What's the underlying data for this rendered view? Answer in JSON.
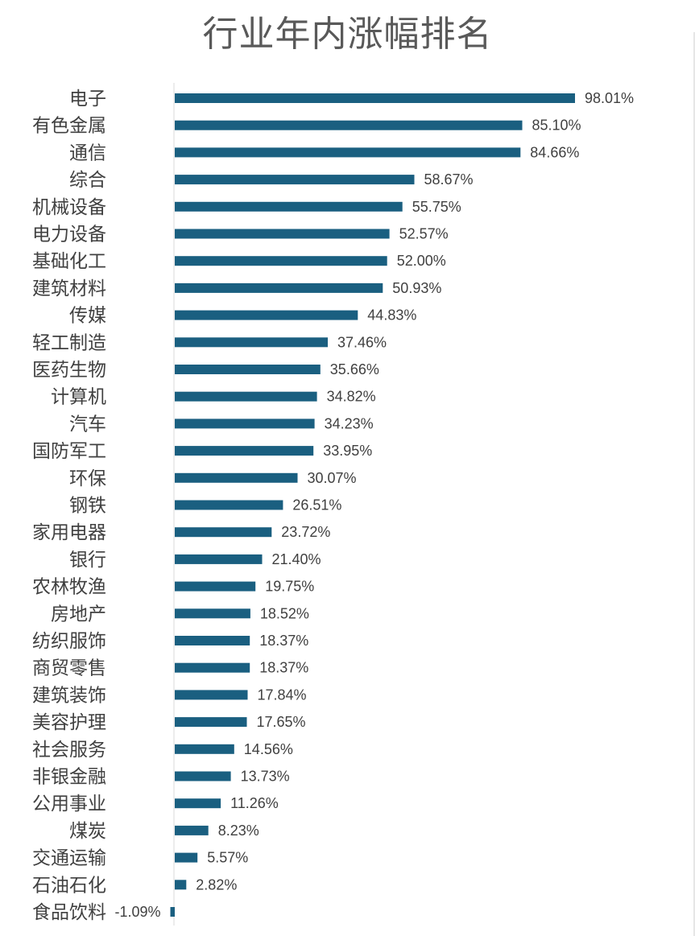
{
  "chart_data": {
    "type": "bar",
    "orientation": "horizontal",
    "title": "行业年内涨幅排名",
    "categories": [
      "电子",
      "有色金属",
      "通信",
      "综合",
      "机械设备",
      "电力设备",
      "基础化工",
      "建筑材料",
      "传媒",
      "轻工制造",
      "医药生物",
      "计算机",
      "汽车",
      "国防军工",
      "环保",
      "钢铁",
      "家用电器",
      "银行",
      "农林牧渔",
      "房地产",
      "纺织服饰",
      "商贸零售",
      "建筑装饰",
      "美容护理",
      "社会服务",
      "非银金融",
      "公用事业",
      "煤炭",
      "交通运输",
      "石油石化",
      "食品饮料"
    ],
    "values": [
      98.01,
      85.1,
      84.66,
      58.67,
      55.75,
      52.57,
      52.0,
      50.93,
      44.83,
      37.46,
      35.66,
      34.82,
      34.23,
      33.95,
      30.07,
      26.51,
      23.72,
      21.4,
      19.75,
      18.52,
      18.37,
      18.37,
      17.84,
      17.65,
      14.56,
      13.73,
      11.26,
      8.23,
      5.57,
      2.82,
      -1.09
    ],
    "value_labels": [
      "98.01%",
      "85.10%",
      "84.66%",
      "58.67%",
      "55.75%",
      "52.57%",
      "52.00%",
      "50.93%",
      "44.83%",
      "37.46%",
      "35.66%",
      "34.82%",
      "34.23%",
      "33.95%",
      "30.07%",
      "26.51%",
      "23.72%",
      "21.40%",
      "19.75%",
      "18.52%",
      "18.37%",
      "18.37%",
      "17.84%",
      "17.65%",
      "14.56%",
      "13.73%",
      "11.26%",
      "8.23%",
      "5.57%",
      "2.82%",
      "-1.09%"
    ],
    "bar_color": "#1a5f80",
    "grid": false,
    "legend": "none"
  }
}
